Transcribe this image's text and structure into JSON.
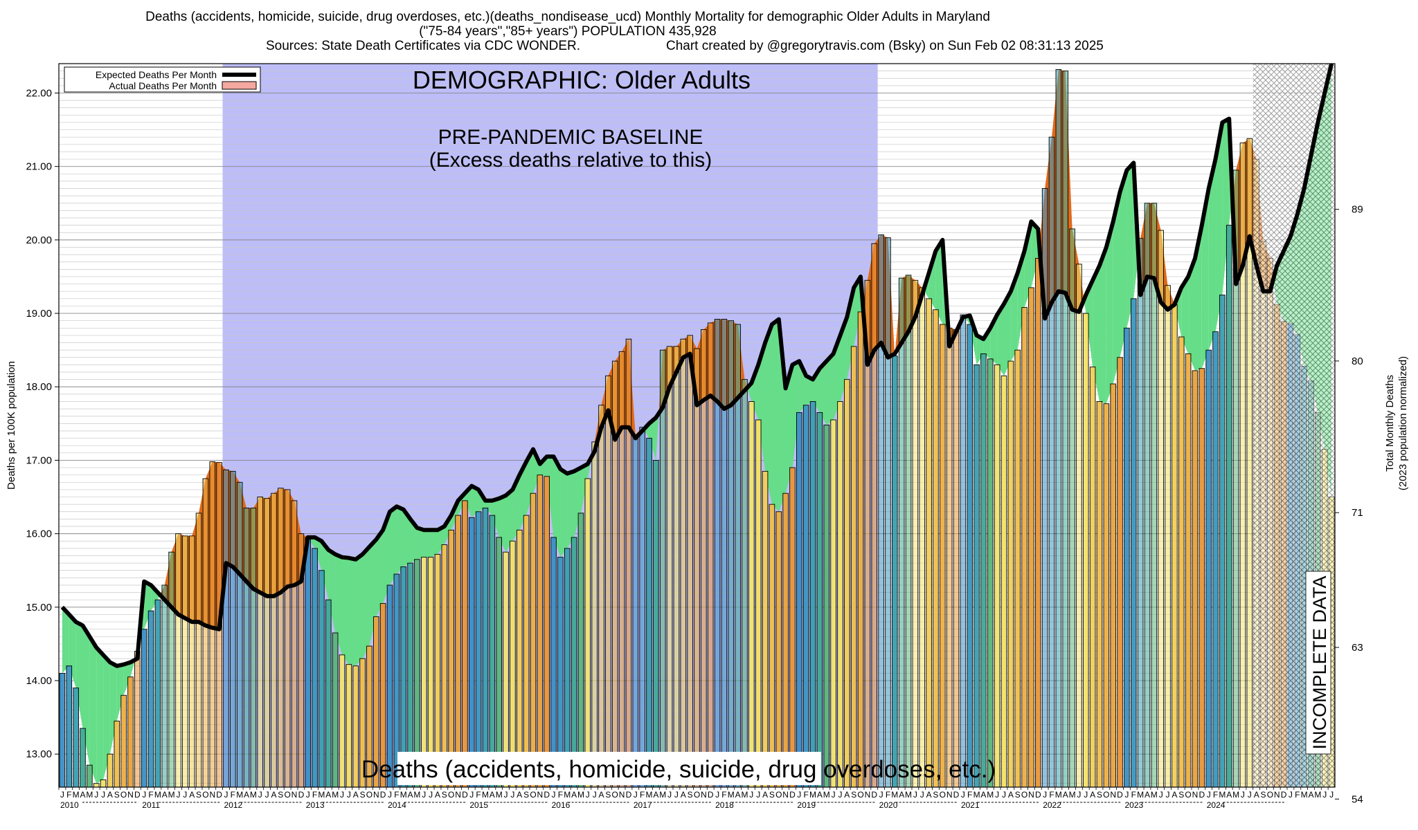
{
  "header": {
    "line1": "Deaths (accidents, homicide, suicide, drug overdoses, etc.)(deaths_nondisease_ucd) Monthly Mortality for demographic Older Adults in Maryland",
    "line2": "(\"75-84 years\",\"85+ years\") POPULATION 435,928",
    "sources": "Sources: State Death Certificates via CDC WONDER.",
    "credit": "Chart created by @gregorytravis.com (Bsky) on Sun Feb 02 08:31:13 2025"
  },
  "colors": {
    "baseline_region": "#bdbdf7",
    "excess_fill": "#e06a1a",
    "expected_line": "#000000",
    "deficit_fill": "#66dd88",
    "actual_swatch": "#f4a8a0"
  },
  "chart_data": {
    "type": "bar",
    "title": "DEMOGRAPHIC: Older Adults",
    "baseline_label_1": "PRE-PANDEMIC BASELINE",
    "baseline_label_2": "(Excess deaths relative to this)",
    "bottom_label": "Deaths (accidents, homicide, suicide, drug overdoses, etc.)",
    "incomplete_label": "INCOMPLETE DATA",
    "ylabel": "Deaths per 100K population",
    "y2label_1": "Total Monthly Deaths",
    "y2label_2": "(2023 population normalized)",
    "ylim": [
      12.55,
      22.4
    ],
    "yticks": [
      "13.00",
      "14.00",
      "15.00",
      "16.00",
      "17.00",
      "18.00",
      "19.00",
      "20.00",
      "21.00",
      "22.00"
    ],
    "y2ticks": [
      54,
      63,
      71,
      80,
      89
    ],
    "legend": [
      {
        "name": "Expected Deaths Per Month",
        "swatch": "line"
      },
      {
        "name": "Actual Deaths Per Month",
        "swatch": "box"
      }
    ],
    "legend_position": "top-left",
    "grid": true,
    "start": "2010-01",
    "month_letters": [
      "J",
      "F",
      "M",
      "A",
      "M",
      "J",
      "J",
      "A",
      "S",
      "O",
      "N",
      "D"
    ],
    "years": [
      "2010",
      "2011",
      "2012",
      "2013",
      "2014",
      "2015",
      "2016",
      "2017",
      "2018",
      "2019",
      "2020",
      "2021",
      "2022",
      "2023",
      "2024"
    ],
    "baseline_period": [
      "2012-01",
      "2019-12"
    ],
    "incomplete_period": [
      "2024-08",
      "2024-12"
    ],
    "series": [
      {
        "name": "Actual Deaths Per Month",
        "values": [
          14.1,
          14.2,
          13.9,
          13.35,
          12.85,
          12.6,
          12.65,
          13.0,
          13.45,
          13.8,
          14.05,
          14.4,
          14.7,
          14.95,
          15.1,
          15.3,
          15.75,
          16.0,
          15.97,
          15.97,
          16.28,
          16.75,
          16.98,
          16.97,
          16.87,
          16.85,
          16.7,
          16.35,
          16.35,
          16.5,
          16.48,
          16.55,
          16.62,
          16.6,
          16.45,
          16.0,
          15.95,
          15.8,
          15.5,
          15.1,
          14.65,
          14.35,
          14.22,
          14.2,
          14.3,
          14.47,
          14.87,
          15.05,
          15.3,
          15.45,
          15.55,
          15.6,
          15.65,
          15.68,
          15.68,
          15.72,
          15.85,
          16.05,
          16.25,
          16.45,
          16.22,
          16.3,
          16.35,
          16.25,
          15.95,
          15.75,
          15.9,
          16.05,
          16.25,
          16.55,
          16.8,
          16.78,
          15.95,
          15.68,
          15.8,
          15.95,
          16.28,
          16.75,
          17.25,
          17.75,
          18.15,
          18.35,
          18.48,
          18.65,
          17.35,
          17.45,
          17.3,
          17.0,
          18.5,
          18.55,
          18.55,
          18.65,
          18.7,
          18.52,
          18.78,
          18.87,
          18.92,
          18.92,
          18.9,
          18.85,
          18.1,
          17.8,
          17.55,
          16.85,
          16.4,
          16.3,
          16.55,
          16.9,
          17.65,
          17.75,
          17.8,
          17.65,
          17.48,
          17.55,
          17.8,
          18.1,
          18.55,
          19.02,
          19.45,
          19.95,
          20.07,
          20.03,
          18.42,
          19.48,
          19.52,
          19.45,
          19.35,
          19.2,
          19.05,
          18.85,
          18.8,
          18.78,
          18.98,
          18.85,
          18.3,
          18.45,
          18.38,
          18.3,
          18.15,
          18.35,
          18.5,
          19.08,
          19.35,
          19.75,
          20.7,
          21.4,
          22.32,
          22.3,
          20.15,
          19.67,
          19.0,
          18.27,
          17.8,
          17.77,
          18.04,
          18.4,
          18.8,
          19.2,
          20.02,
          20.5,
          20.5,
          20.13,
          19.38,
          19.12,
          18.68,
          18.45,
          18.22,
          18.25,
          18.5,
          18.75,
          19.25,
          20.2,
          20.95,
          21.32,
          21.38,
          21.1,
          19.98,
          19.75,
          19.12,
          18.89,
          18.86,
          18.71,
          18.28,
          18.08,
          17.65,
          17.15,
          16.5
        ]
      },
      {
        "name": "Expected Deaths Per Month",
        "values": [
          15.0,
          14.9,
          14.8,
          14.75,
          14.6,
          14.45,
          14.35,
          14.25,
          14.2,
          14.22,
          14.25,
          14.3,
          15.35,
          15.3,
          15.2,
          15.1,
          15.0,
          14.9,
          14.85,
          14.8,
          14.8,
          14.75,
          14.72,
          14.7,
          15.6,
          15.55,
          15.45,
          15.35,
          15.25,
          15.2,
          15.15,
          15.15,
          15.2,
          15.28,
          15.3,
          15.35,
          15.95,
          15.95,
          15.9,
          15.78,
          15.72,
          15.68,
          15.67,
          15.65,
          15.72,
          15.82,
          15.92,
          16.05,
          16.3,
          16.37,
          16.33,
          16.2,
          16.08,
          16.05,
          16.05,
          16.05,
          16.1,
          16.25,
          16.45,
          16.55,
          16.65,
          16.6,
          16.45,
          16.45,
          16.48,
          16.52,
          16.6,
          16.8,
          16.98,
          17.15,
          16.95,
          17.05,
          17.05,
          16.88,
          16.82,
          16.85,
          16.9,
          16.95,
          17.12,
          17.45,
          17.68,
          17.28,
          17.45,
          17.45,
          17.3,
          17.4,
          17.5,
          17.58,
          17.72,
          18.0,
          18.2,
          18.4,
          18.45,
          17.75,
          17.82,
          17.88,
          17.8,
          17.7,
          17.75,
          17.85,
          17.95,
          18.05,
          18.3,
          18.6,
          18.85,
          18.92,
          17.98,
          18.3,
          18.35,
          18.15,
          18.1,
          18.25,
          18.35,
          18.45,
          18.7,
          18.95,
          19.35,
          19.5,
          18.3,
          18.5,
          18.6,
          18.4,
          18.45,
          18.6,
          18.75,
          18.95,
          19.25,
          19.55,
          19.85,
          20.0,
          18.55,
          18.75,
          18.95,
          18.97,
          18.7,
          18.65,
          18.8,
          18.98,
          19.13,
          19.3,
          19.55,
          19.85,
          20.25,
          20.15,
          18.93,
          19.15,
          19.3,
          19.28,
          19.05,
          19.02,
          19.25,
          19.45,
          19.65,
          19.9,
          20.25,
          20.65,
          20.95,
          21.05,
          19.25,
          19.5,
          19.48,
          19.15,
          19.05,
          19.12,
          19.35,
          19.5,
          19.75,
          20.2,
          20.7,
          21.1,
          21.6,
          21.65,
          19.4,
          19.65,
          20.05,
          19.65,
          19.3,
          19.3,
          19.65,
          19.85,
          20.05,
          20.35,
          20.7,
          21.15,
          21.6,
          22.0,
          22.4
        ]
      }
    ]
  }
}
